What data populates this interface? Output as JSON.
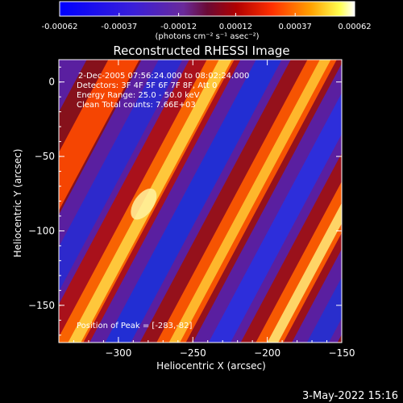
{
  "chart_data": {
    "type": "heatmap",
    "title": "Reconstructed RHESSI Image",
    "xlabel": "Heliocentric X (arcsec)",
    "ylabel": "Heliocentric Y (arcsec)",
    "xlim": [
      -340,
      -150
    ],
    "ylim": [
      -175,
      15
    ],
    "x_ticks": [
      -300,
      -250,
      -200,
      -150
    ],
    "y_ticks": [
      0,
      -50,
      -100,
      -150
    ],
    "colorbar": {
      "ticks": [
        "-0.00062",
        "-0.00037",
        "-0.00012",
        "0.00012",
        "0.00037",
        "0.00062"
      ],
      "range": [
        -0.00062,
        0.00062
      ],
      "unit_label": "(photons cm⁻² s⁻¹ asec⁻²)"
    },
    "annotations": [
      "2-Dec-2005 07:56:24.000 to 08:02:24.000",
      "Detectors: 3F 4F 5F 6F 7F 8F, Att 0",
      "Energy Range: 25.0 - 50.0 keV",
      "Clean     Total counts: 7.66E+03"
    ],
    "peak_label": "Position of Peak = [-283,-82]",
    "peak": [
      -283,
      -82
    ],
    "stripe_angle_note": "diagonal fringe pattern"
  },
  "footer": {
    "timestamp": "3-May-2022 15:16"
  }
}
